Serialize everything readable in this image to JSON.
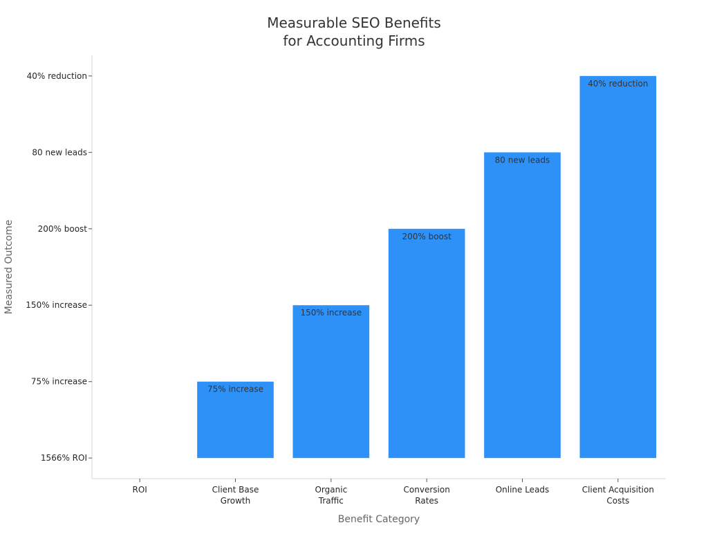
{
  "chart_data": {
    "type": "bar",
    "title": "Measurable SEO Benefits\nfor Accounting Firms",
    "title_lines": [
      "Measurable SEO Benefits",
      "for Accounting Firms"
    ],
    "xlabel": "Benefit Category",
    "ylabel": "Measured Outcome",
    "categories": [
      "ROI",
      "Client Base\nGrowth",
      "Organic\nTraffic",
      "Conversion\nRates",
      "Online Leads",
      "Client Acquisition\nCosts"
    ],
    "y_ticks": [
      "1566% ROI",
      "75% increase",
      "150% increase",
      "200% boost",
      "80 new leads",
      "40% reduction"
    ],
    "values": [
      0,
      1,
      2,
      3,
      4,
      5
    ],
    "data_labels": [
      "",
      "75% increase",
      "150% increase",
      "200% boost",
      "80 new leads",
      "40% reduction"
    ],
    "ylim": [
      -0.27,
      5.27
    ],
    "grid": false,
    "legend": "none",
    "colors": {
      "bar": "#2e91f8",
      "axis": "#d4d4d4",
      "tick_label": "#262626",
      "axis_title": "#666666",
      "title": "#333333",
      "data_label": "#333333"
    }
  }
}
